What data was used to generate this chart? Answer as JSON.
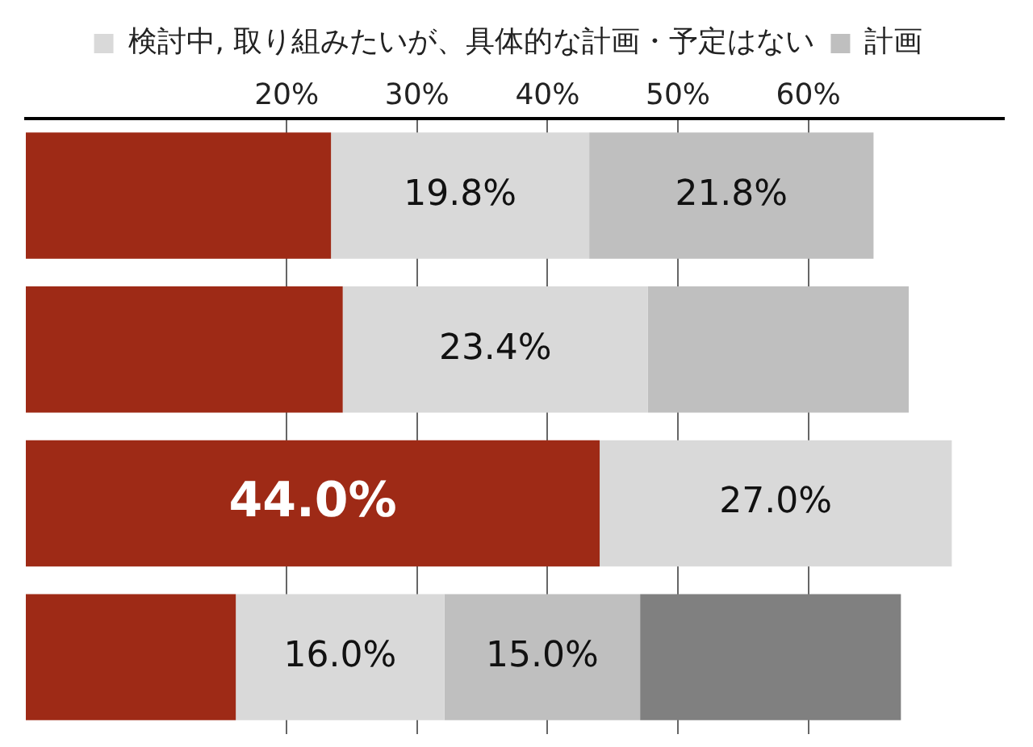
{
  "chart_data": {
    "type": "bar",
    "orientation": "horizontal",
    "stacked": true,
    "categories": [
      null,
      null,
      null,
      null
    ],
    "series": [
      {
        "color": "#9e2a16",
        "values": [
          23.4,
          24.3,
          44.0,
          16.1
        ],
        "value_labels": [
          null,
          null,
          "44.0%",
          null
        ]
      },
      {
        "name": "検討中, 取り組みたいが、具体的な計画・予定はない",
        "color": "#d9d9d9",
        "values": [
          19.8,
          23.4,
          27.0,
          16.0
        ],
        "value_labels": [
          "19.8%",
          "23.4%",
          "27.0%",
          "16.0%"
        ]
      },
      {
        "name": "計画",
        "color": "#bfbfbf",
        "values": [
          21.8,
          20,
          null,
          15.0
        ],
        "value_labels": [
          "21.8%",
          null,
          null,
          "15.0%"
        ]
      },
      {
        "color": "#808080",
        "values": [
          null,
          null,
          null,
          20
        ],
        "value_labels": [
          null,
          null,
          null,
          null
        ]
      }
    ],
    "xlim": [
      0,
      75
    ],
    "xticks": [
      {
        "value": 20,
        "label": "20%"
      },
      {
        "value": 30,
        "label": "30%"
      },
      {
        "value": 40,
        "label": "40%"
      },
      {
        "value": 50,
        "label": "50%"
      },
      {
        "value": 60,
        "label": "60%"
      }
    ],
    "grid": "x",
    "legend": "top"
  }
}
